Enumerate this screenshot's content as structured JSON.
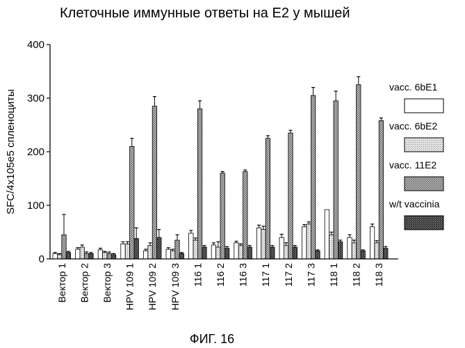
{
  "figure_caption": "ФИГ. 16",
  "chart_data": {
    "type": "bar",
    "title": "Клеточные иммунные ответы на E2 у мышей",
    "xlabel": "",
    "ylabel": "SFC/4x105e5 спленоциты",
    "ylim": [
      0,
      400
    ],
    "yticks": [
      0,
      100,
      200,
      300,
      400
    ],
    "legend_position": "right",
    "grid": false,
    "categories": [
      "Вектор 1",
      "Вектор 2",
      "Вектор 3",
      "HPV 109 1",
      "HPV 109 2",
      "HPV 109 3",
      "116 1",
      "116 2",
      "116 3",
      "117 1",
      "117 2",
      "117 3",
      "118 1",
      "118 2",
      "118 3"
    ],
    "series": [
      {
        "name": "vacc. 6bE1",
        "pattern": "white",
        "values": [
          10,
          18,
          17,
          28,
          15,
          18,
          48,
          26,
          30,
          58,
          40,
          60,
          92,
          40,
          60
        ],
        "errors": [
          2,
          3,
          3,
          4,
          3,
          3,
          5,
          4,
          3,
          5,
          6,
          4,
          0,
          5,
          5
        ]
      },
      {
        "name": "vacc. 6bE2",
        "pattern": "light",
        "values": [
          8,
          22,
          12,
          28,
          25,
          15,
          35,
          22,
          25,
          55,
          25,
          65,
          45,
          30,
          30
        ],
        "errors": [
          2,
          4,
          2,
          4,
          5,
          3,
          4,
          10,
          3,
          6,
          5,
          4,
          5,
          5,
          4
        ]
      },
      {
        "name": "vacc. 11E2",
        "pattern": "medium",
        "values": [
          45,
          10,
          10,
          210,
          285,
          35,
          280,
          160,
          163,
          225,
          235,
          305,
          295,
          325,
          258
        ],
        "errors": [
          38,
          3,
          3,
          15,
          18,
          10,
          15,
          3,
          3,
          5,
          5,
          15,
          18,
          15,
          5
        ]
      },
      {
        "name": "w/t vaccinia",
        "pattern": "dark",
        "values": [
          12,
          10,
          8,
          38,
          40,
          10,
          22,
          20,
          22,
          22,
          22,
          15,
          32,
          15,
          20
        ],
        "errors": [
          2,
          2,
          2,
          20,
          15,
          2,
          3,
          3,
          3,
          3,
          3,
          2,
          3,
          2,
          3
        ]
      }
    ]
  }
}
